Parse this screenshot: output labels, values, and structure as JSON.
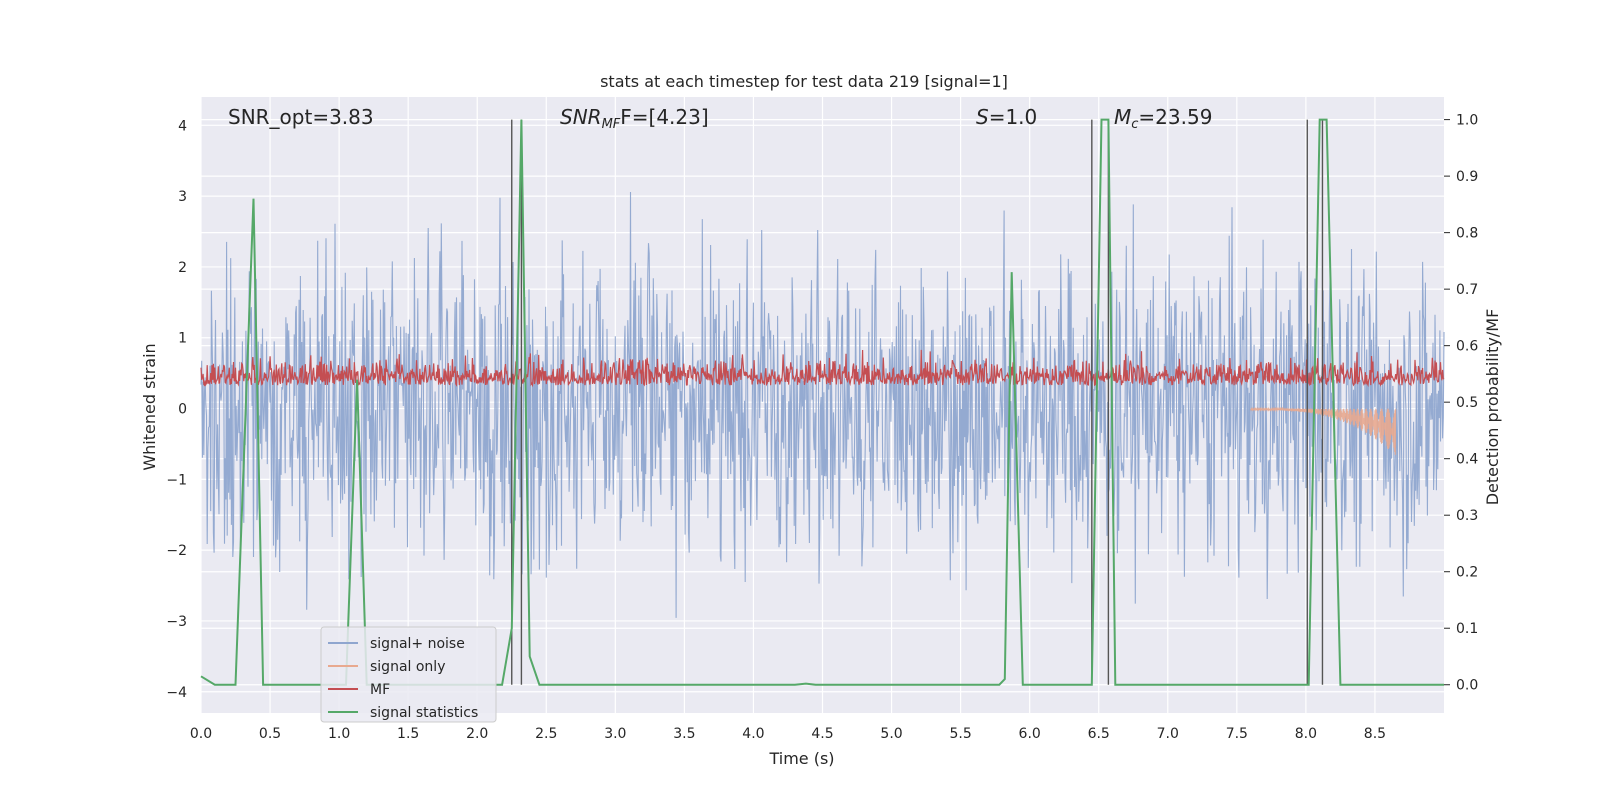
{
  "chart_data": {
    "type": "line",
    "title": "stats at each timestep for test data 219 [signal=1]",
    "xlabel": "Time (s)",
    "ylabel": "Whitened strain",
    "ylabel_right": "Detection probability/MF",
    "xlim": [
      0.0,
      9.0
    ],
    "ylim": [
      -4.3,
      4.4
    ],
    "ylim_right": [
      -0.05,
      1.04
    ],
    "x_ticks": [
      "0.0",
      "0.5",
      "1.0",
      "1.5",
      "2.0",
      "2.5",
      "3.0",
      "3.5",
      "4.0",
      "4.5",
      "5.0",
      "5.5",
      "6.0",
      "6.5",
      "7.0",
      "7.5",
      "8.0",
      "8.5"
    ],
    "y_ticks": [
      "4",
      "3",
      "2",
      "1",
      "0",
      "−1",
      "−2",
      "−3",
      "−4"
    ],
    "y_right_ticks": [
      "1.0",
      "0.9",
      "0.8",
      "0.7",
      "0.6",
      "0.5",
      "0.4",
      "0.3",
      "0.2",
      "0.1",
      "0.0"
    ],
    "grid": true,
    "legend_position": "lower-left",
    "annotations": {
      "snr_opt": "SNR_opt=3.83",
      "snr_mf_base": "SNR",
      "snr_mf_sub": "MF",
      "snr_mf_rest": "F=[4.23]",
      "s_base": "S",
      "s_rest": "=1.0",
      "mc_base": "M",
      "mc_sub": "c",
      "mc_rest": "=23.59"
    },
    "vlines_x": [
      2.25,
      2.32,
      6.45,
      6.57,
      8.01,
      8.12
    ],
    "series": [
      {
        "name": "signal+ noise",
        "color": "#8fa6cf",
        "axis": "left",
        "kind": "noise",
        "amplitude_range": [
          -3.9,
          4.0
        ]
      },
      {
        "name": "signal only",
        "color": "#e8a98f",
        "axis": "left",
        "kind": "chirp",
        "points": [
          [
            7.8,
            0.0
          ],
          [
            8.2,
            -0.1
          ],
          [
            8.4,
            -0.25
          ],
          [
            8.55,
            -0.45
          ],
          [
            8.65,
            -0.65
          ]
        ]
      },
      {
        "name": "MF",
        "color": "#c44e52",
        "axis": "right",
        "kind": "noise",
        "amplitude_range": [
          0.5,
          0.62
        ]
      },
      {
        "name": "signal statistics",
        "color": "#55a868",
        "axis": "right",
        "kind": "line",
        "points": [
          [
            0.0,
            0.015
          ],
          [
            0.1,
            0.0
          ],
          [
            0.25,
            0.0
          ],
          [
            0.38,
            0.86
          ],
          [
            0.45,
            0.0
          ],
          [
            1.05,
            0.0
          ],
          [
            1.13,
            0.54
          ],
          [
            1.2,
            0.0
          ],
          [
            2.18,
            0.0
          ],
          [
            2.25,
            0.1
          ],
          [
            2.32,
            1.0
          ],
          [
            2.38,
            0.05
          ],
          [
            2.45,
            0.0
          ],
          [
            4.3,
            0.0
          ],
          [
            4.38,
            0.002
          ],
          [
            4.45,
            0.0
          ],
          [
            5.78,
            0.0
          ],
          [
            5.82,
            0.01
          ],
          [
            5.87,
            0.73
          ],
          [
            5.95,
            0.0
          ],
          [
            6.45,
            0.0
          ],
          [
            6.52,
            1.0
          ],
          [
            6.57,
            1.0
          ],
          [
            6.62,
            0.0
          ],
          [
            8.02,
            0.0
          ],
          [
            8.1,
            1.0
          ],
          [
            8.15,
            1.0
          ],
          [
            8.25,
            0.0
          ],
          [
            9.0,
            0.0
          ]
        ]
      }
    ]
  }
}
